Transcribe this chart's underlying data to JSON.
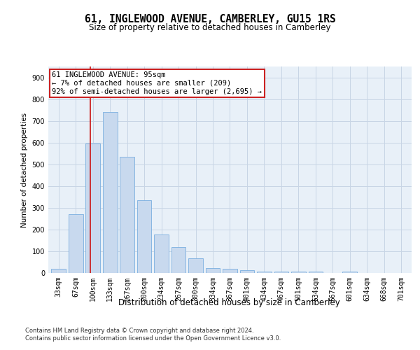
{
  "title": "61, INGLEWOOD AVENUE, CAMBERLEY, GU15 1RS",
  "subtitle": "Size of property relative to detached houses in Camberley",
  "xlabel": "Distribution of detached houses by size in Camberley",
  "ylabel": "Number of detached properties",
  "categories": [
    "33sqm",
    "67sqm",
    "100sqm",
    "133sqm",
    "167sqm",
    "200sqm",
    "234sqm",
    "267sqm",
    "300sqm",
    "334sqm",
    "367sqm",
    "401sqm",
    "434sqm",
    "467sqm",
    "501sqm",
    "534sqm",
    "567sqm",
    "601sqm",
    "634sqm",
    "668sqm",
    "701sqm"
  ],
  "values": [
    20,
    270,
    595,
    740,
    535,
    335,
    178,
    118,
    68,
    22,
    20,
    12,
    8,
    7,
    6,
    5,
    0,
    8,
    0,
    0,
    0
  ],
  "bar_color": "#c8d9ee",
  "bar_edge_color": "#7aafe0",
  "annotation_text": "61 INGLEWOOD AVENUE: 95sqm\n← 7% of detached houses are smaller (209)\n92% of semi-detached houses are larger (2,695) →",
  "annotation_box_edge": "#cc2222",
  "annotation_box_face": "#ffffff",
  "highlight_line_color": "#cc2222",
  "ylim": [
    0,
    950
  ],
  "yticks": [
    0,
    100,
    200,
    300,
    400,
    500,
    600,
    700,
    800,
    900
  ],
  "grid_color": "#c8d5e5",
  "background_color": "#e8f0f8",
  "footer_line1": "Contains HM Land Registry data © Crown copyright and database right 2024.",
  "footer_line2": "Contains public sector information licensed under the Open Government Licence v3.0.",
  "title_fontsize": 10.5,
  "subtitle_fontsize": 8.5,
  "xlabel_fontsize": 8.5,
  "ylabel_fontsize": 7.5,
  "tick_fontsize": 7,
  "annotation_fontsize": 7.5,
  "footer_fontsize": 6
}
